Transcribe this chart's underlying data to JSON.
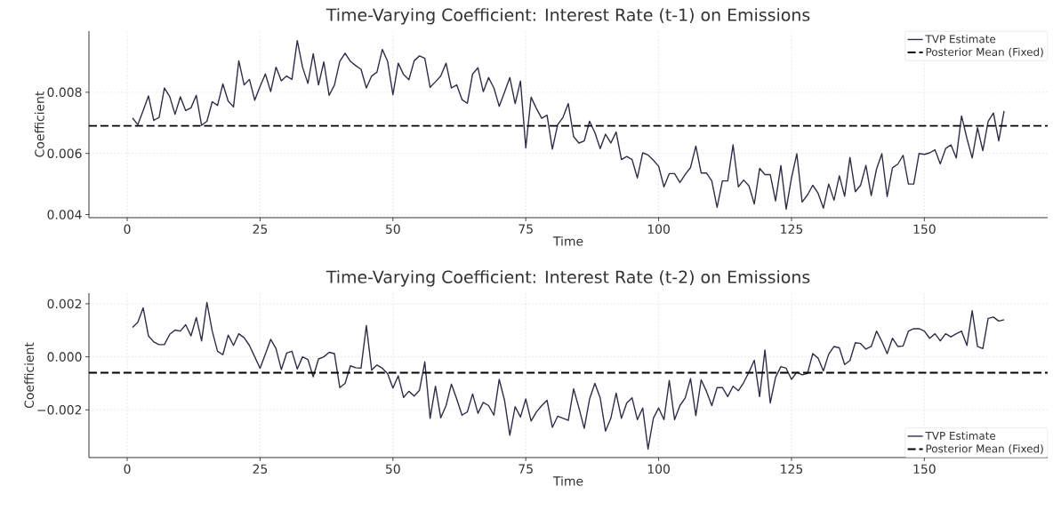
{
  "chart_data": [
    {
      "type": "line",
      "title": "Time-Varying Coefficient: Interest Rate (t-1) on Emissions",
      "xlabel": "Time",
      "ylabel": "Coefficient",
      "x": [
        1,
        2,
        3,
        4,
        5,
        6,
        7,
        8,
        9,
        10,
        11,
        12,
        13,
        14,
        15,
        16,
        17,
        18,
        19,
        20,
        21,
        22,
        23,
        24,
        25,
        26,
        27,
        28,
        29,
        30,
        31,
        32,
        33,
        34,
        35,
        36,
        37,
        38,
        39,
        40,
        41,
        42,
        43,
        44,
        45,
        46,
        47,
        48,
        49,
        50,
        51,
        52,
        53,
        54,
        55,
        56,
        57,
        58,
        59,
        60,
        61,
        62,
        63,
        64,
        65,
        66,
        67,
        68,
        69,
        70,
        71,
        72,
        73,
        74,
        75,
        76,
        77,
        78,
        79,
        80,
        81,
        82,
        83,
        84,
        85,
        86,
        87,
        88,
        89,
        90,
        91,
        92,
        93,
        94,
        95,
        96,
        97,
        98,
        99,
        100,
        101,
        102,
        103,
        104,
        105,
        106,
        107,
        108,
        109,
        110,
        111,
        112,
        113,
        114,
        115,
        116,
        117,
        118,
        119,
        120,
        121,
        122,
        123,
        124,
        125,
        126,
        127,
        128,
        129,
        130,
        131,
        132,
        133,
        134,
        135,
        136,
        137,
        138,
        139,
        140,
        141,
        142,
        143,
        144,
        145,
        146,
        147,
        148,
        149,
        150,
        151,
        152,
        153,
        154,
        155,
        156,
        157,
        158,
        159,
        160,
        161,
        162,
        163,
        164,
        165
      ],
      "series": [
        {
          "name": "TVP Estimate",
          "color": "#2e2e48",
          "values": [
            0.00716,
            0.00694,
            0.0074,
            0.00788,
            0.00708,
            0.00718,
            0.00814,
            0.00786,
            0.00728,
            0.00785,
            0.0074,
            0.00749,
            0.0079,
            0.00692,
            0.00705,
            0.00769,
            0.00757,
            0.00827,
            0.00771,
            0.00752,
            0.00903,
            0.00824,
            0.00842,
            0.00774,
            0.00819,
            0.0086,
            0.00802,
            0.00882,
            0.00837,
            0.00853,
            0.00842,
            0.00969,
            0.00882,
            0.00829,
            0.00926,
            0.00824,
            0.00899,
            0.0079,
            0.00824,
            0.00901,
            0.00928,
            0.00901,
            0.00887,
            0.00875,
            0.00814,
            0.00853,
            0.00866,
            0.0094,
            0.00901,
            0.00792,
            0.00895,
            0.00858,
            0.00841,
            0.00903,
            0.00919,
            0.00911,
            0.00816,
            0.00834,
            0.00853,
            0.00895,
            0.00814,
            0.00824,
            0.00776,
            0.00764,
            0.0086,
            0.0088,
            0.00802,
            0.00848,
            0.00814,
            0.00754,
            0.008,
            0.00848,
            0.00763,
            0.00837,
            0.00618,
            0.00784,
            0.00747,
            0.00715,
            0.00725,
            0.00614,
            0.00694,
            0.00718,
            0.00763,
            0.00655,
            0.00634,
            0.00641,
            0.00705,
            0.00668,
            0.00616,
            0.00663,
            0.00634,
            0.0067,
            0.0058,
            0.0059,
            0.0058,
            0.0052,
            0.00602,
            0.00595,
            0.00578,
            0.00558,
            0.00491,
            0.00534,
            0.00534,
            0.00505,
            0.00531,
            0.00554,
            0.00624,
            0.00536,
            0.00536,
            0.0051,
            0.00424,
            0.0051,
            0.0051,
            0.00628,
            0.00491,
            0.00513,
            0.00494,
            0.00435,
            0.00551,
            0.00531,
            0.00531,
            0.00445,
            0.0056,
            0.00418,
            0.0052,
            0.00599,
            0.00441,
            0.00464,
            0.00496,
            0.0047,
            0.00421,
            0.005,
            0.00447,
            0.00527,
            0.0046,
            0.00587,
            0.00475,
            0.00496,
            0.00561,
            0.00462,
            0.00549,
            0.00599,
            0.00459,
            0.00553,
            0.00565,
            0.00594,
            0.005,
            0.005,
            0.006,
            0.00597,
            0.00602,
            0.00612,
            0.00566,
            0.00616,
            0.00628,
            0.00585,
            0.00723,
            0.0065,
            0.00585,
            0.00684,
            0.00609,
            0.00705,
            0.00732,
            0.00641,
            0.00739
          ]
        }
      ],
      "ref_lines": [
        {
          "axis": "y",
          "value": 0.0069,
          "label": "Posterior Mean (Fixed)",
          "color": "#000000",
          "line_style": "dashed"
        }
      ],
      "xlim": [
        -7.2,
        173.2
      ],
      "xticks": [
        0,
        25,
        50,
        75,
        100,
        125,
        150
      ],
      "ylim": [
        0.0039,
        0.01
      ],
      "yticks": [
        0.004,
        0.006,
        0.008
      ],
      "grid": true,
      "legend": "top right",
      "marker": "none",
      "line_style": "solid"
    },
    {
      "type": "line",
      "title": "Time-Varying Coefficient: Interest Rate (t-2) on Emissions",
      "xlabel": "Time",
      "ylabel": "Coefficient",
      "x": [
        1,
        2,
        3,
        4,
        5,
        6,
        7,
        8,
        9,
        10,
        11,
        12,
        13,
        14,
        15,
        16,
        17,
        18,
        19,
        20,
        21,
        22,
        23,
        24,
        25,
        26,
        27,
        28,
        29,
        30,
        31,
        32,
        33,
        34,
        35,
        36,
        37,
        38,
        39,
        40,
        41,
        42,
        43,
        44,
        45,
        46,
        47,
        48,
        49,
        50,
        51,
        52,
        53,
        54,
        55,
        56,
        57,
        58,
        59,
        60,
        61,
        62,
        63,
        64,
        65,
        66,
        67,
        68,
        69,
        70,
        71,
        72,
        73,
        74,
        75,
        76,
        77,
        78,
        79,
        80,
        81,
        82,
        83,
        84,
        85,
        86,
        87,
        88,
        89,
        90,
        91,
        92,
        93,
        94,
        95,
        96,
        97,
        98,
        99,
        100,
        101,
        102,
        103,
        104,
        105,
        106,
        107,
        108,
        109,
        110,
        111,
        112,
        113,
        114,
        115,
        116,
        117,
        118,
        119,
        120,
        121,
        122,
        123,
        124,
        125,
        126,
        127,
        128,
        129,
        130,
        131,
        132,
        133,
        134,
        135,
        136,
        137,
        138,
        139,
        140,
        141,
        142,
        143,
        144,
        145,
        146,
        147,
        148,
        149,
        150,
        151,
        152,
        153,
        154,
        155,
        156,
        157,
        158,
        159,
        160,
        161,
        162,
        163,
        164,
        165
      ],
      "series": [
        {
          "name": "TVP Estimate",
          "color": "#2e2e48",
          "values": [
            0.00111,
            0.0013,
            0.00185,
            0.00079,
            0.00056,
            0.00046,
            0.00046,
            0.00085,
            0.00101,
            0.00097,
            0.00121,
            0.00079,
            0.00148,
            0.0006,
            0.00205,
            0.00097,
            0.00021,
            8e-05,
            0.00082,
            0.00043,
            0.00087,
            0.00072,
            0.00043,
            0.0,
            -0.00043,
            0.0001,
            0.00066,
            0.00031,
            -0.00048,
            0.00014,
            0.00021,
            -0.00046,
            0.0,
            -0.0001,
            -0.00075,
            -8e-05,
            0.0,
            0.00017,
            0.00012,
            -0.00116,
            -0.001,
            -0.00034,
            -0.00041,
            -0.00043,
            0.00118,
            -0.0005,
            -0.00031,
            -0.00043,
            -0.00063,
            -0.00118,
            -0.00072,
            -0.00153,
            -0.0013,
            -0.00148,
            -0.00126,
            -0.00019,
            -0.00232,
            -0.00111,
            -0.0023,
            -0.00184,
            -0.00103,
            -0.00159,
            -0.0022,
            -0.00208,
            -0.0014,
            -0.00213,
            -0.00172,
            -0.00184,
            -0.0022,
            -0.00085,
            -0.00164,
            -0.00296,
            -0.00188,
            -0.00227,
            -0.00159,
            -0.00242,
            -0.00208,
            -0.00184,
            -0.00164,
            -0.00266,
            -0.00224,
            -0.00232,
            -0.0024,
            -0.00121,
            -0.00193,
            -0.0027,
            -0.00159,
            -0.001,
            -0.00155,
            -0.0028,
            -0.00232,
            -0.00137,
            -0.00232,
            -0.00174,
            -0.00155,
            -0.00237,
            -0.00193,
            -0.00348,
            -0.00232,
            -0.00193,
            -0.00237,
            -0.00089,
            -0.00237,
            -0.00184,
            -0.00155,
            -0.00082,
            -0.00222,
            -0.00087,
            -0.0013,
            -0.00184,
            -0.00116,
            -0.00116,
            -0.0015,
            -0.00111,
            -0.00128,
            -0.00097,
            -0.00058,
            -0.00013,
            -0.0015,
            0.00026,
            -0.00174,
            -0.00077,
            -0.00037,
            -0.00043,
            -0.00085,
            -0.00058,
            -0.00068,
            -0.00063,
            0.00012,
            -5e-05,
            -0.00053,
            0.0001,
            0.00039,
            0.00034,
            -0.00029,
            -0.00014,
            0.00053,
            0.0005,
            0.00029,
            0.00039,
            0.00097,
            0.00058,
            0.00012,
            0.0007,
            0.00039,
            0.00041,
            0.00097,
            0.00106,
            0.00106,
            0.00097,
            0.0007,
            0.00087,
            0.0006,
            0.00087,
            0.00075,
            0.00087,
            0.00097,
            0.00043,
            0.00174,
            0.00039,
            0.00031,
            0.00145,
            0.0015,
            0.00135,
            0.0014
          ]
        }
      ],
      "ref_lines": [
        {
          "axis": "y",
          "value": -0.0006,
          "label": "Posterior Mean (Fixed)",
          "color": "#000000",
          "line_style": "dashed"
        }
      ],
      "xlim": [
        -7.2,
        173.2
      ],
      "xticks": [
        0,
        25,
        50,
        75,
        100,
        125,
        150
      ],
      "ylim": [
        -0.0038,
        0.0024
      ],
      "yticks": [
        {
          "value": -0.002,
          "label": "−0.002"
        },
        {
          "value": 0,
          "label": "0.000"
        },
        {
          "value": 0.002,
          "label": "0.002"
        }
      ],
      "grid": true,
      "legend": "bottom right",
      "marker": "none",
      "line_style": "solid"
    }
  ]
}
